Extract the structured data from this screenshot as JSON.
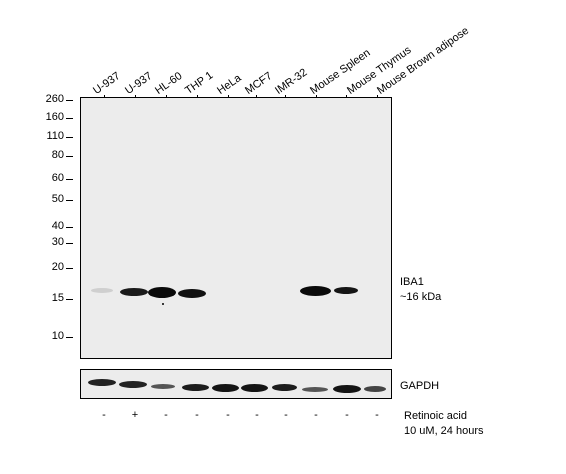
{
  "lanes": [
    "U-937",
    "U-937",
    "HL-60",
    "THP 1",
    "HeLa",
    "MCF7",
    "IMR-32",
    "Mouse Spleen",
    "Mouse Thymus",
    "Mouse Brown adipose"
  ],
  "mw_markers": [
    "260",
    "160",
    "110",
    "80",
    "60",
    "50",
    "40",
    "30",
    "20",
    "15",
    "10"
  ],
  "target_label_1": "IBA1",
  "target_label_2": "~16 kDa",
  "loading_label": "GAPDH",
  "treatment": [
    "-",
    "+",
    "-",
    "-",
    "-",
    "-",
    "-",
    "-",
    "-",
    "-"
  ],
  "treatment_label_1": "Retinoic acid",
  "treatment_label_2": "10 uM,  24 hours",
  "colors": {
    "background": "#ffffff",
    "blot": "#ececec",
    "band": "#111111"
  }
}
